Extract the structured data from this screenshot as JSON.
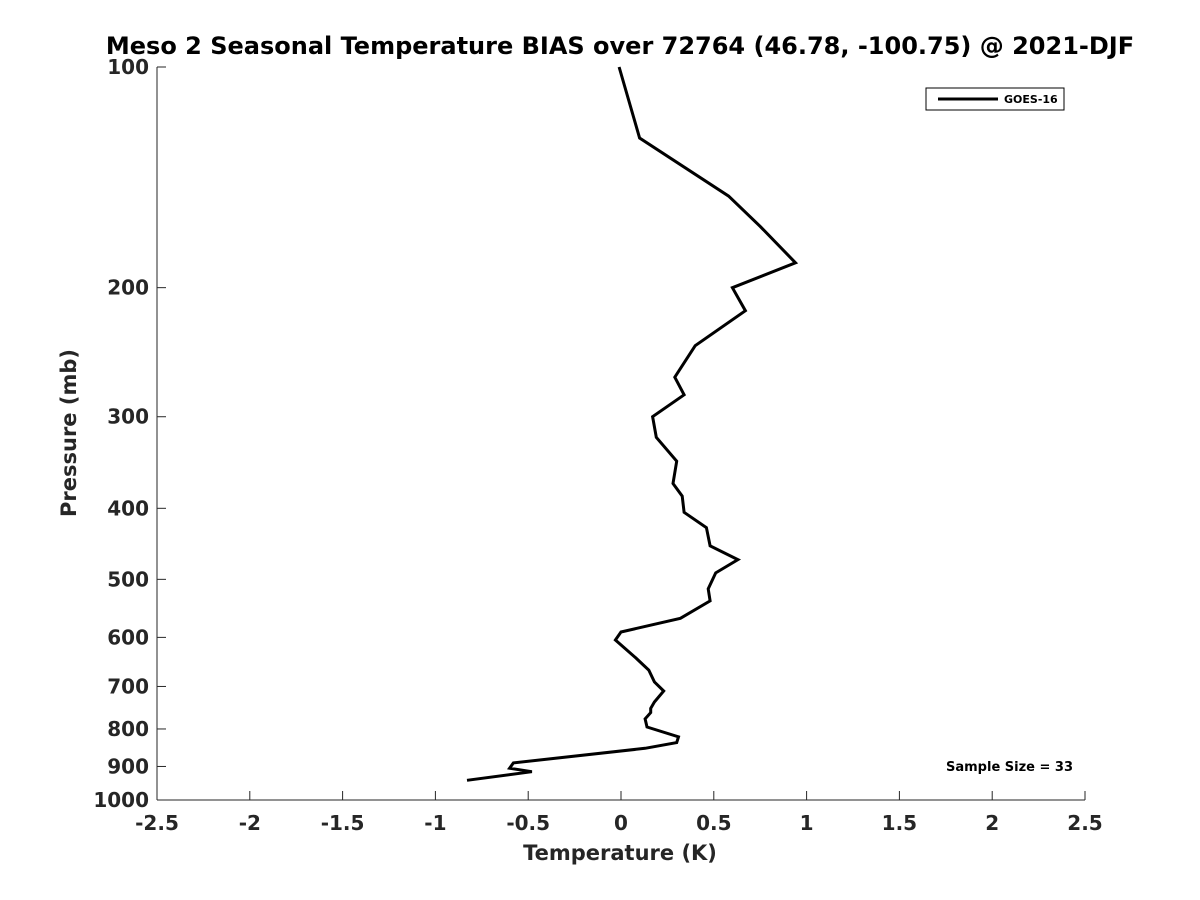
{
  "chart_data": {
    "type": "line",
    "title": "Meso 2 Seasonal Temperature BIAS over 72764 (46.78, -100.75) @ 2021-DJF",
    "xlabel": "Temperature (K)",
    "ylabel": "Pressure (mb)",
    "xlim": [
      -2.5,
      2.5
    ],
    "ylim": [
      1000,
      100
    ],
    "y_scale": "log",
    "grid": false,
    "legend_position": "top-right",
    "x_ticks": [
      "-2.5",
      "-2",
      "-1.5",
      "-1",
      "-0.5",
      "0",
      "0.5",
      "1",
      "1.5",
      "2",
      "2.5"
    ],
    "y_ticks": [
      "100",
      "200",
      "300",
      "400",
      "500",
      "600",
      "700",
      "800",
      "900",
      "1000"
    ],
    "series": [
      {
        "name": "GOES-16",
        "color": "#000000",
        "points": [
          {
            "x": -0.01,
            "y": 100
          },
          {
            "x": 0.1,
            "y": 125
          },
          {
            "x": 0.58,
            "y": 150
          },
          {
            "x": 0.75,
            "y": 165
          },
          {
            "x": 0.94,
            "y": 185
          },
          {
            "x": 0.6,
            "y": 200
          },
          {
            "x": 0.67,
            "y": 215
          },
          {
            "x": 0.4,
            "y": 240
          },
          {
            "x": 0.29,
            "y": 265
          },
          {
            "x": 0.34,
            "y": 280
          },
          {
            "x": 0.17,
            "y": 300
          },
          {
            "x": 0.19,
            "y": 320
          },
          {
            "x": 0.3,
            "y": 345
          },
          {
            "x": 0.28,
            "y": 370
          },
          {
            "x": 0.33,
            "y": 385
          },
          {
            "x": 0.34,
            "y": 405
          },
          {
            "x": 0.46,
            "y": 425
          },
          {
            "x": 0.48,
            "y": 450
          },
          {
            "x": 0.63,
            "y": 470
          },
          {
            "x": 0.51,
            "y": 490
          },
          {
            "x": 0.47,
            "y": 515
          },
          {
            "x": 0.48,
            "y": 535
          },
          {
            "x": 0.32,
            "y": 565
          },
          {
            "x": 0.0,
            "y": 590
          },
          {
            "x": -0.03,
            "y": 605
          },
          {
            "x": 0.08,
            "y": 640
          },
          {
            "x": 0.15,
            "y": 665
          },
          {
            "x": 0.18,
            "y": 690
          },
          {
            "x": 0.23,
            "y": 710
          },
          {
            "x": 0.18,
            "y": 735
          },
          {
            "x": 0.16,
            "y": 750
          },
          {
            "x": 0.16,
            "y": 760
          },
          {
            "x": 0.13,
            "y": 775
          },
          {
            "x": 0.14,
            "y": 795
          },
          {
            "x": 0.31,
            "y": 820
          },
          {
            "x": 0.3,
            "y": 835
          },
          {
            "x": 0.13,
            "y": 850
          },
          {
            "x": -0.58,
            "y": 890
          },
          {
            "x": -0.6,
            "y": 905
          },
          {
            "x": -0.48,
            "y": 915
          },
          {
            "x": -0.83,
            "y": 940
          }
        ]
      }
    ],
    "annotations": [
      "Sample Size = 33"
    ]
  }
}
